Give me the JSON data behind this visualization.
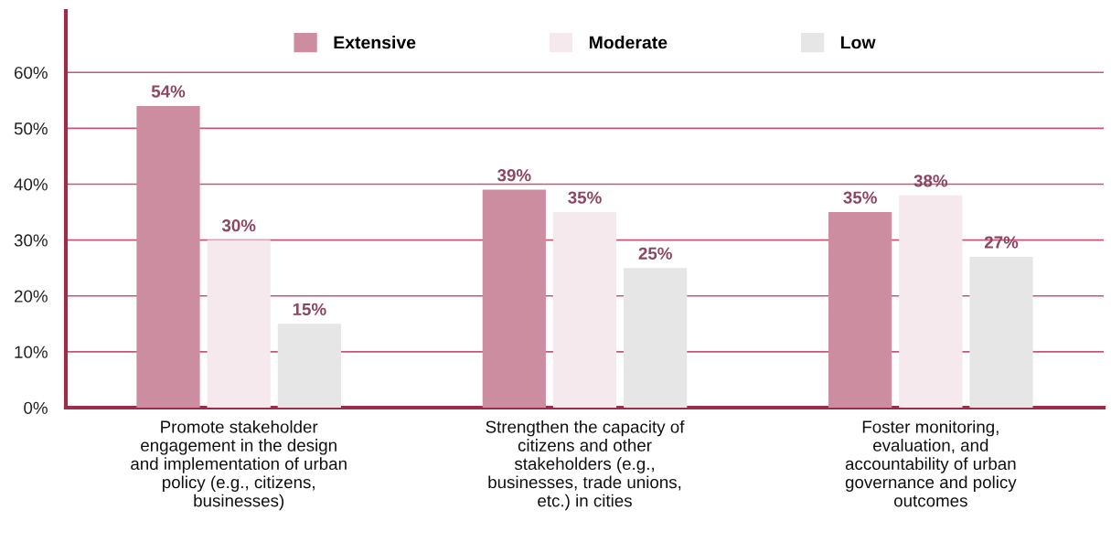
{
  "chart_data": {
    "type": "bar",
    "categories": [
      "Promote stakeholder engagement in the design and implementation of urban policy (e.g., citizens, businesses)",
      "Strengthen the capacity of citizens and other stakeholders (e.g., businesses, trade unions, etc.) in cities",
      "Foster monitoring, evaluation, and accountability of urban governance and policy outcomes"
    ],
    "series": [
      {
        "name": "Extensive",
        "color": "#cd8da0",
        "values": [
          54,
          39,
          35
        ],
        "value_labels": [
          "54%",
          "39%",
          "35%"
        ]
      },
      {
        "name": "Moderate",
        "color": "#f5e9ee",
        "values": [
          30,
          35,
          38
        ],
        "value_labels": [
          "30%",
          "35%",
          "38%"
        ]
      },
      {
        "name": "Low",
        "color": "#e6e6e6",
        "values": [
          15,
          25,
          27
        ],
        "value_labels": [
          "15%",
          "25%",
          "27%"
        ]
      }
    ],
    "ylim": [
      0,
      71
    ],
    "yticks": [
      {
        "value": 0,
        "label": "0%"
      },
      {
        "value": 10,
        "label": "10%"
      },
      {
        "value": 20,
        "label": "20%"
      },
      {
        "value": 30,
        "label": "30%"
      },
      {
        "value": 40,
        "label": "40%"
      },
      {
        "value": 50,
        "label": "50%"
      },
      {
        "value": 60,
        "label": "60%"
      }
    ],
    "grid": "y",
    "legend": "top"
  }
}
